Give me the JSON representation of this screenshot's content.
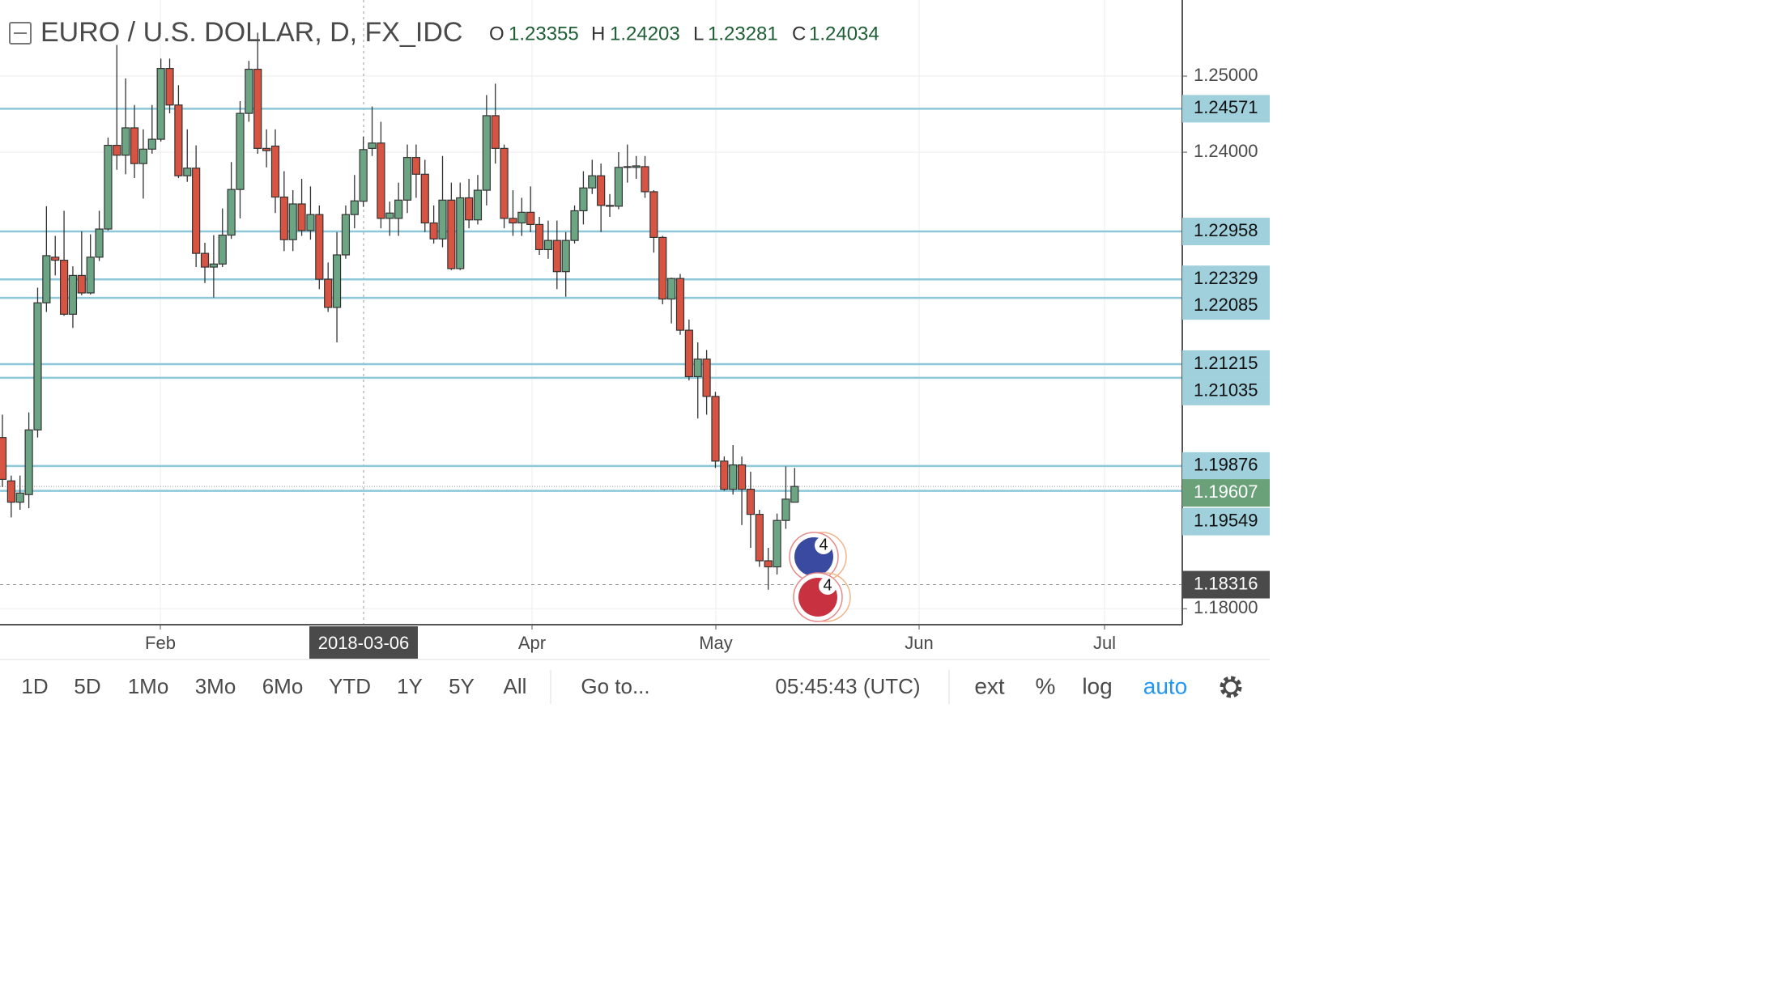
{
  "chart_data": {
    "type": "candlestick",
    "title": "EURO / U.S. DOLLAR, D, FX_IDC",
    "ohlc_letters": [
      "O",
      "H",
      "L",
      "C"
    ],
    "ohlc_values": [
      1.23355,
      1.24203,
      1.23281,
      1.24034
    ],
    "up_color": "#6ba583",
    "down_color": "#d75442",
    "line_color": "#8ec8d8",
    "candles": {
      "open": [
        1.2025,
        1.1968,
        1.194,
        1.195,
        1.2035,
        1.2202,
        1.2262,
        1.2258,
        1.2187,
        1.2238,
        1.2215,
        1.2262,
        1.2299,
        1.2409,
        1.2396,
        1.2432,
        1.2385,
        1.2404,
        1.2417,
        1.251,
        1.2462,
        1.2369,
        1.2379,
        1.2267,
        1.2249,
        1.2253,
        1.2291,
        1.2351,
        1.2451,
        1.2509,
        1.2405,
        1.2408,
        1.2341,
        1.2285,
        1.2332,
        1.2297,
        1.2318,
        1.2233,
        1.2196,
        1.2265,
        1.2318,
        1.23355,
        1.2405,
        1.2412,
        1.2313,
        1.2313,
        1.2337,
        1.2393,
        1.2371,
        1.2307,
        1.2286,
        1.2337,
        1.2247,
        1.234,
        1.2311,
        1.235,
        1.2448,
        1.2405,
        1.2313,
        1.2307,
        1.2321,
        1.2305,
        1.2272,
        1.2284,
        1.2243,
        1.2284,
        1.2323,
        1.2353,
        1.2369,
        1.233,
        1.2329,
        1.238,
        1.238,
        1.2381,
        1.2348,
        1.2288,
        1.2207,
        1.2234,
        1.2166,
        1.2105,
        1.2128,
        1.2079,
        1.1994,
        1.1957,
        1.1989,
        1.1957,
        1.1924,
        1.1863,
        1.1855,
        1.1916,
        1.194
      ],
      "high": [
        1.2055,
        1.1975,
        1.1975,
        1.2058,
        1.2222,
        1.2329,
        1.229,
        1.2323,
        1.225,
        1.2296,
        1.2292,
        1.2323,
        1.2419,
        1.2541,
        1.2497,
        1.2462,
        1.243,
        1.2462,
        1.2523,
        1.2523,
        1.2488,
        1.243,
        1.2409,
        1.2281,
        1.2291,
        1.2326,
        1.2387,
        1.2467,
        1.252,
        1.2557,
        1.243,
        1.243,
        1.2375,
        1.235,
        1.2365,
        1.2355,
        1.233,
        1.2255,
        1.2295,
        1.233,
        1.237,
        1.24203,
        1.246,
        1.244,
        1.2335,
        1.236,
        1.241,
        1.241,
        1.239,
        1.233,
        1.2395,
        1.236,
        1.236,
        1.2365,
        1.237,
        1.2475,
        1.249,
        1.241,
        1.235,
        1.234,
        1.2355,
        1.2315,
        1.231,
        1.231,
        1.2295,
        1.233,
        1.2375,
        1.239,
        1.2385,
        1.2345,
        1.24,
        1.241,
        1.2395,
        1.2395,
        1.235,
        1.229,
        1.2235,
        1.224,
        1.218,
        1.215,
        1.214,
        1.2085,
        1.2,
        1.2015,
        1.2,
        1.198,
        1.193,
        1.188,
        1.1925,
        1.1987,
        1.1985
      ],
      "low": [
        1.196,
        1.192,
        1.193,
        1.1932,
        1.2025,
        1.219,
        1.2238,
        1.2185,
        1.2169,
        1.2212,
        1.2213,
        1.2257,
        1.2297,
        1.2377,
        1.2371,
        1.2366,
        1.2339,
        1.2398,
        1.2414,
        1.2451,
        1.2366,
        1.2361,
        1.2249,
        1.2228,
        1.2209,
        1.2249,
        1.2286,
        1.2313,
        1.244,
        1.2398,
        1.238,
        1.232,
        1.227,
        1.227,
        1.229,
        1.2285,
        1.222,
        1.219,
        1.215,
        1.226,
        1.23,
        1.23281,
        1.2395,
        1.23,
        1.229,
        1.229,
        1.232,
        1.234,
        1.2295,
        1.228,
        1.2275,
        1.2245,
        1.2245,
        1.23,
        1.2305,
        1.233,
        1.2385,
        1.23,
        1.229,
        1.229,
        1.2295,
        1.2265,
        1.226,
        1.222,
        1.221,
        1.228,
        1.2305,
        1.2345,
        1.2295,
        1.2315,
        1.2325,
        1.236,
        1.2365,
        1.234,
        1.2268,
        1.22,
        1.2175,
        1.216,
        1.21,
        1.205,
        1.2055,
        1.1985,
        1.1955,
        1.195,
        1.191,
        1.188,
        1.1855,
        1.1825,
        1.1845,
        1.1905,
        1.194
      ],
      "close": [
        1.197,
        1.194,
        1.1952,
        1.2035,
        1.2202,
        1.2264,
        1.2258,
        1.2187,
        1.2238,
        1.2215,
        1.2262,
        1.2299,
        1.2409,
        1.2396,
        1.2432,
        1.2385,
        1.2404,
        1.2417,
        1.251,
        1.2462,
        1.2369,
        1.2379,
        1.2267,
        1.2249,
        1.2253,
        1.2291,
        1.2351,
        1.2451,
        1.2509,
        1.2405,
        1.2402,
        1.2341,
        1.2285,
        1.2332,
        1.2297,
        1.2318,
        1.2233,
        1.2196,
        1.2265,
        1.2318,
        1.2336,
        1.24034,
        1.2412,
        1.2313,
        1.232,
        1.2337,
        1.2393,
        1.2371,
        1.2307,
        1.2286,
        1.2337,
        1.2247,
        1.234,
        1.2311,
        1.235,
        1.2448,
        1.2405,
        1.2313,
        1.2307,
        1.2321,
        1.2305,
        1.2272,
        1.2284,
        1.2243,
        1.2284,
        1.2323,
        1.2353,
        1.2369,
        1.233,
        1.2329,
        1.238,
        1.2381,
        1.2382,
        1.2348,
        1.2288,
        1.2207,
        1.2234,
        1.2166,
        1.2105,
        1.2128,
        1.2079,
        1.1994,
        1.1957,
        1.1989,
        1.1957,
        1.1924,
        1.1863,
        1.1855,
        1.1916,
        1.1944,
        1.19607
      ]
    },
    "ylim": [
      1.1779,
      1.26
    ],
    "yticks": [
      {
        "value": 1.25,
        "label": "1.25000"
      },
      {
        "value": 1.24,
        "label": "1.24000"
      },
      {
        "value": 1.18,
        "label": "1.18000"
      }
    ],
    "xticks": [
      "Feb",
      "Apr",
      "May",
      "Jun",
      "Jul"
    ],
    "crosshair_label": "2018-03-06",
    "price_lines": [
      1.24571,
      1.22958,
      1.22329,
      1.22085,
      1.21215,
      1.21035,
      1.19876,
      1.19549
    ],
    "last_price": 1.19607,
    "low_marker": 1.18316,
    "events": [
      "4",
      "4"
    ]
  },
  "toolbar": {
    "ranges": [
      "1D",
      "5D",
      "1Mo",
      "3Mo",
      "6Mo",
      "YTD",
      "1Y",
      "5Y",
      "All"
    ],
    "goto": "Go to...",
    "clock": "05:45:43 (UTC)",
    "options": [
      "ext",
      "%",
      "log",
      "auto"
    ]
  }
}
